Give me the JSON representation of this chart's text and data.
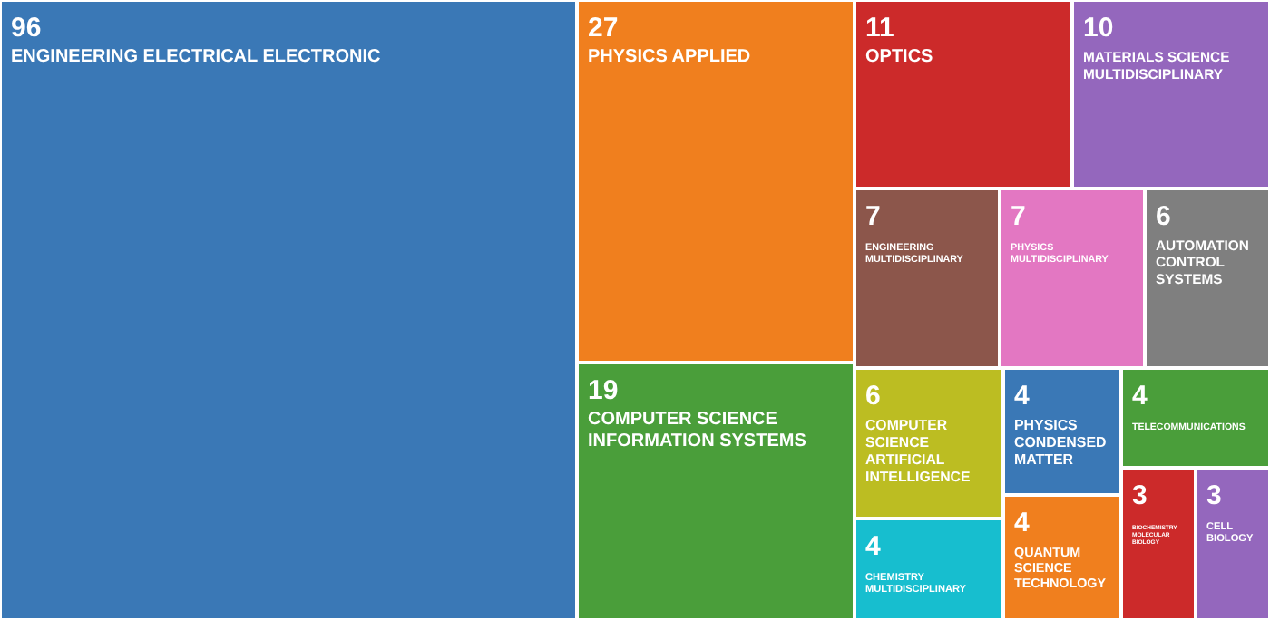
{
  "chart_data": {
    "type": "other",
    "categories": [
      "ENGINEERING ELECTRICAL ELECTRONIC",
      "PHYSICS APPLIED",
      "COMPUTER SCIENCE INFORMATION SYSTEMS",
      "OPTICS",
      "MATERIALS SCIENCE MULTIDISCIPLINARY",
      "ENGINEERING MULTIDISCIPLINARY",
      "PHYSICS MULTIDISCIPLINARY",
      "AUTOMATION CONTROL SYSTEMS",
      "COMPUTER SCIENCE ARTIFICIAL INTELLIGENCE",
      "CHEMISTRY MULTIDISCIPLINARY",
      "PHYSICS CONDENSED MATTER",
      "QUANTUM SCIENCE TECHNOLOGY",
      "TELECOMMUNICATIONS",
      "BIOCHEMISTRY MOLECULAR BIOLOGY",
      "CELL BIOLOGY"
    ],
    "values": [
      96,
      27,
      19,
      11,
      10,
      7,
      7,
      6,
      6,
      4,
      4,
      4,
      4,
      3,
      3
    ],
    "colors": [
      "#3a78b6",
      "#f07f1e",
      "#4a9e3a",
      "#cc2a2a",
      "#9467bd",
      "#8c564b",
      "#e377c2",
      "#7f7f7f",
      "#bcbd22",
      "#17becf",
      "#3a78b6",
      "#f07f1e",
      "#4a9e3a",
      "#cc2a2a",
      "#9467bd"
    ],
    "data_labels": true
  }
}
